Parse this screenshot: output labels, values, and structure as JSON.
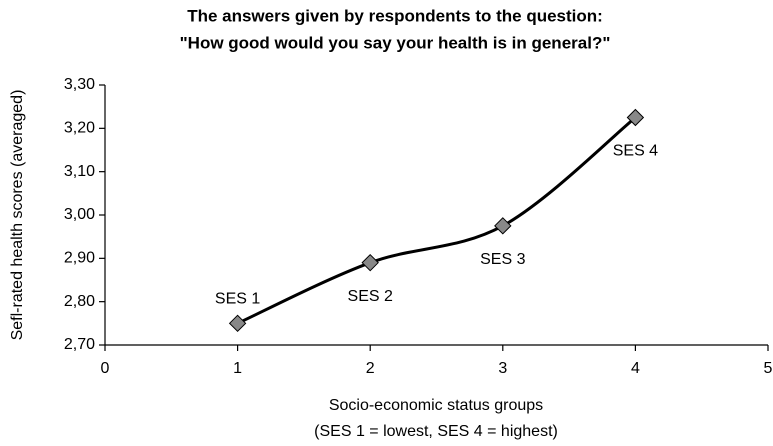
{
  "chart_data": {
    "type": "line",
    "title": [
      "The answers given by respondents to the question:",
      "\"How good would you say your health is in general?\""
    ],
    "x_label": [
      "Socio-economic status groups",
      "(SES 1 = lowest, SES 4 = highest)"
    ],
    "y_label": "Sefl-rated health scores (averaged)",
    "x": [
      1,
      2,
      3,
      4
    ],
    "series": [
      {
        "color": "#000000",
        "marker_color": "#888888",
        "values": [
          2.75,
          2.89,
          2.975,
          3.225
        ]
      }
    ],
    "point_labels": [
      "SES 1",
      "SES 2",
      "SES 3",
      "SES 4"
    ],
    "xlim": [
      0,
      5
    ],
    "xticks": [
      0,
      1,
      2,
      3,
      4,
      5
    ],
    "ylim": [
      2.7,
      3.3
    ],
    "yticks": [
      {
        "value": 2.7,
        "label": "2,70"
      },
      {
        "value": 2.8,
        "label": "2,80"
      },
      {
        "value": 2.9,
        "label": "2,90"
      },
      {
        "value": 3.0,
        "label": "3,00"
      },
      {
        "value": 3.1,
        "label": "3,10"
      },
      {
        "value": 3.2,
        "label": "3,20"
      },
      {
        "value": 3.3,
        "label": "3,30"
      }
    ],
    "grid": false
  }
}
